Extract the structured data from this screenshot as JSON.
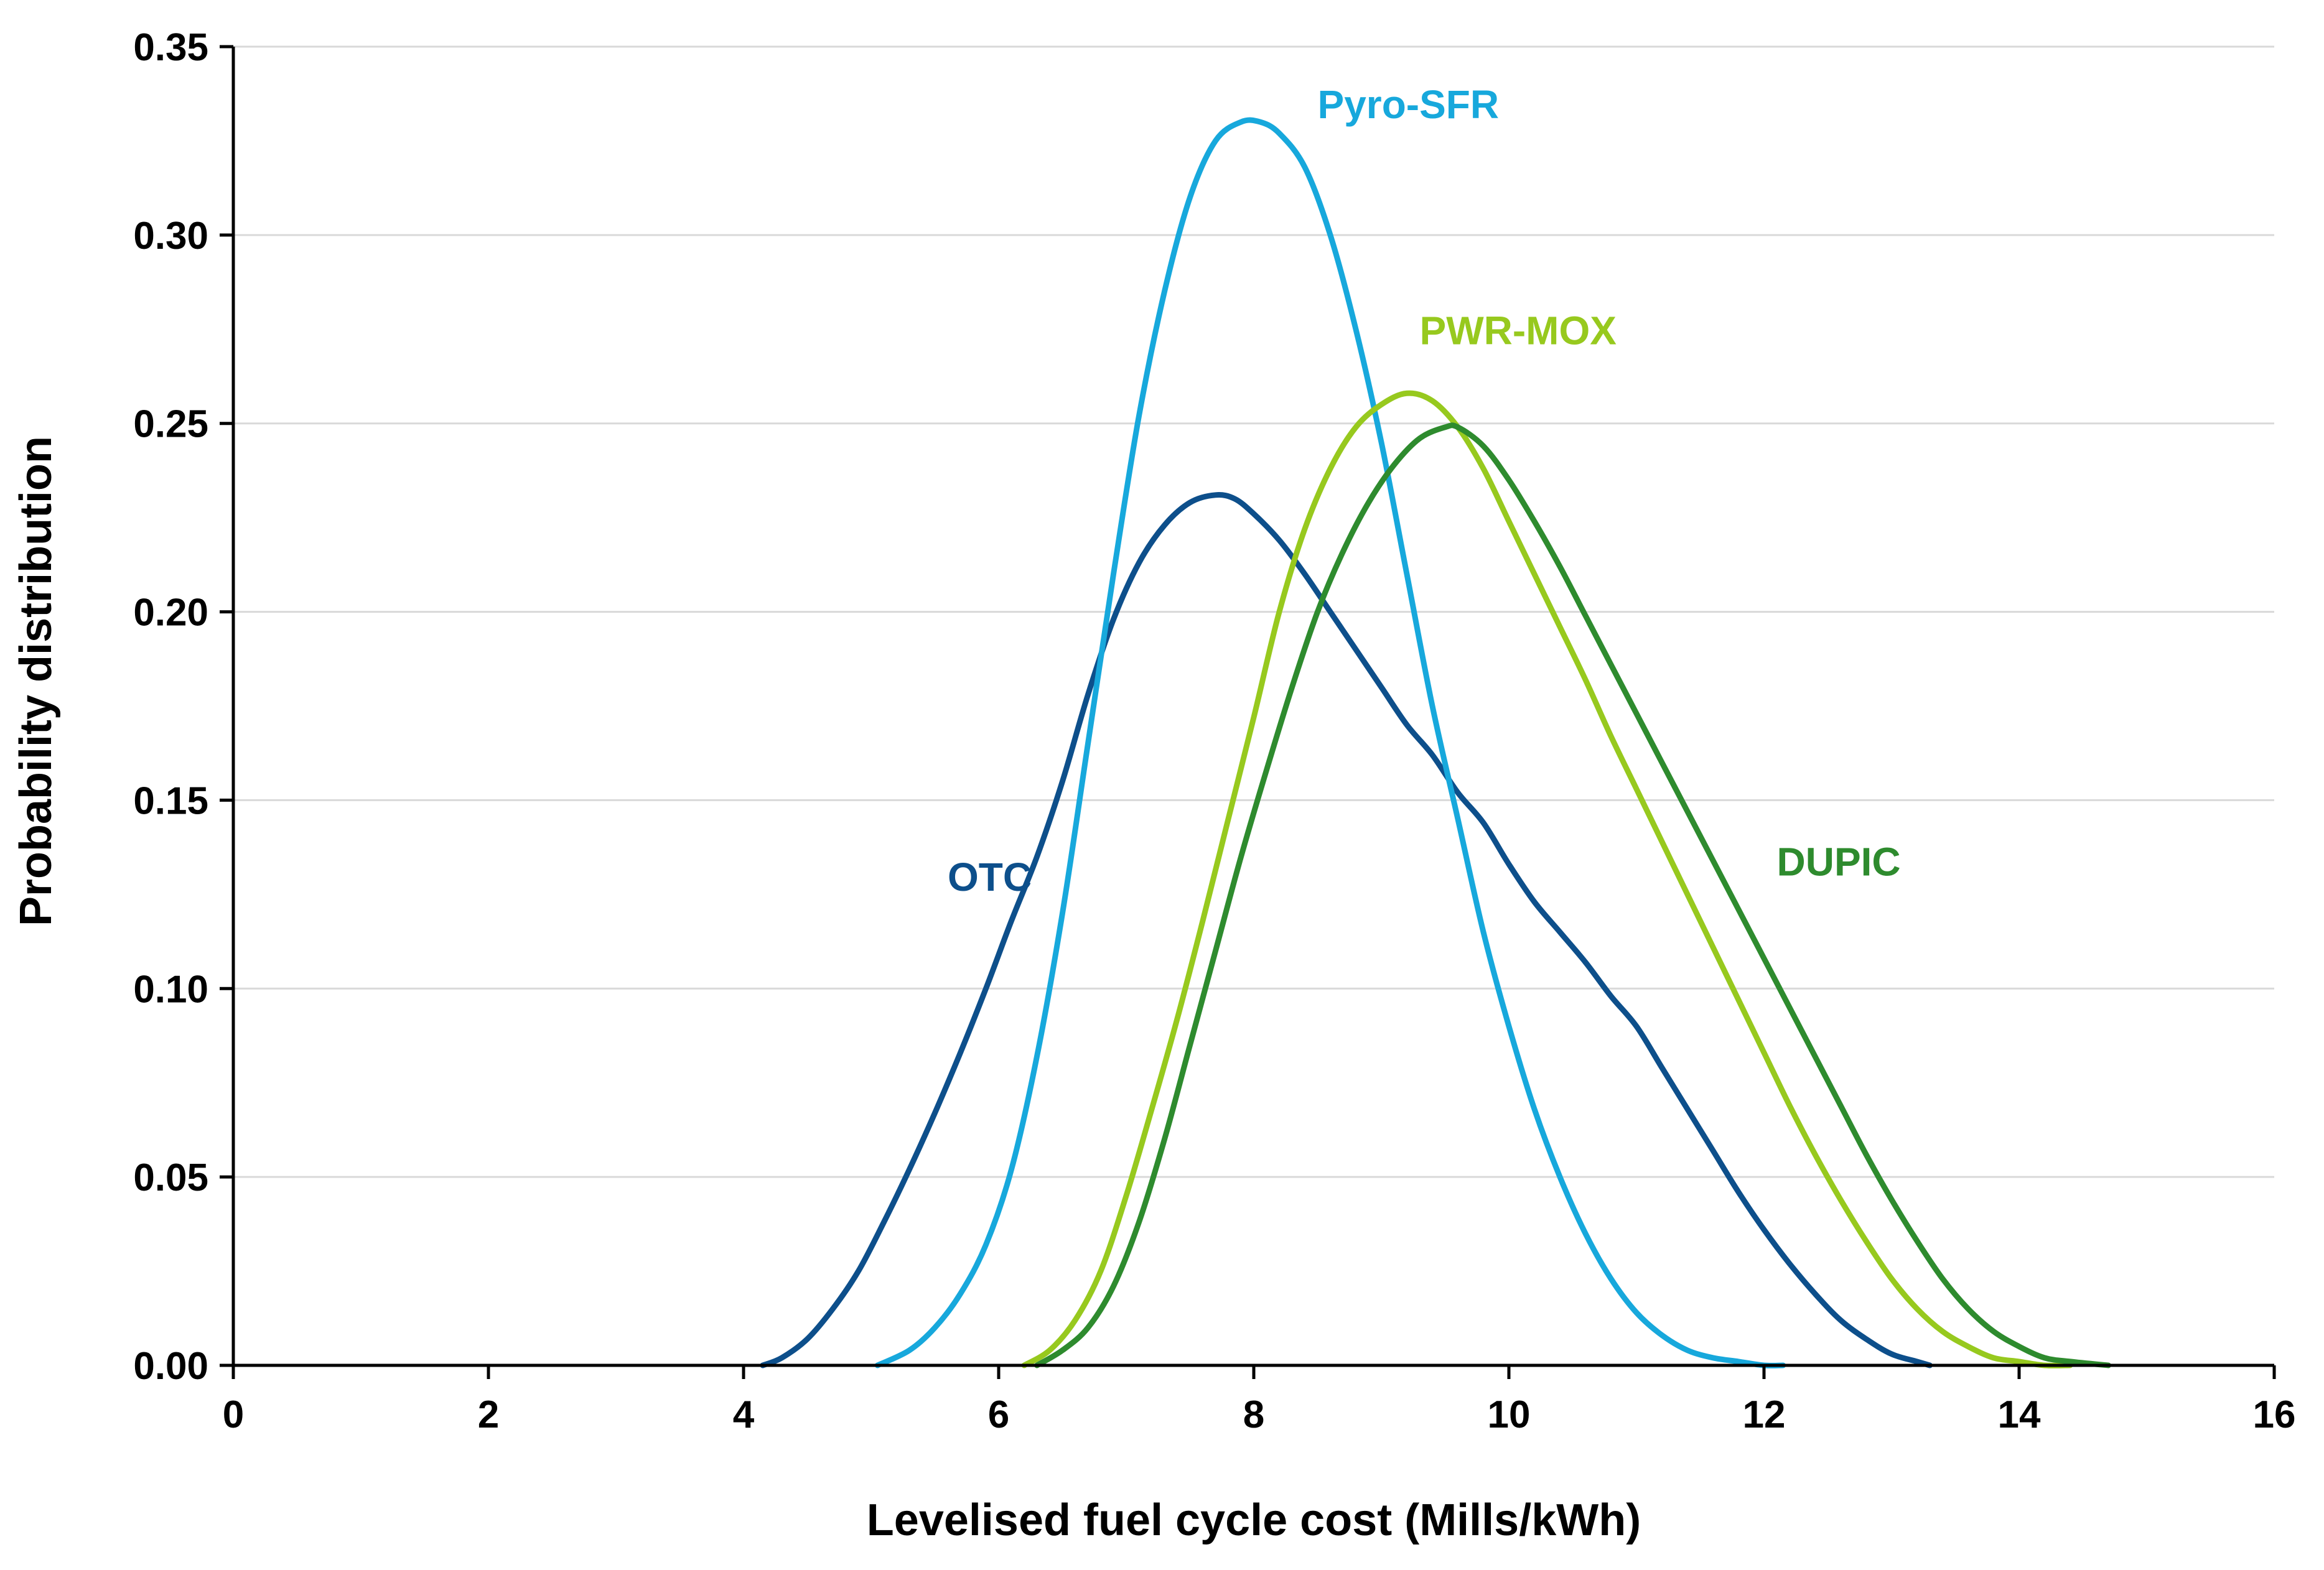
{
  "chart_data": {
    "type": "line",
    "title": "",
    "xlabel": "Levelised fuel cycle cost (Mills/kWh)",
    "ylabel": "Probability distribution",
    "xlim": [
      0,
      16
    ],
    "ylim": [
      0,
      0.35
    ],
    "x_ticks": [
      0,
      2,
      4,
      6,
      8,
      10,
      12,
      14,
      16
    ],
    "x_tick_labels": [
      "0",
      "2",
      "4",
      "6",
      "8",
      "10",
      "12",
      "14",
      "16"
    ],
    "y_ticks": [
      0,
      0.05,
      0.1,
      0.15,
      0.2,
      0.25,
      0.3,
      0.35
    ],
    "y_tick_labels": [
      "0.00",
      "0.05",
      "0.10",
      "0.15",
      "0.20",
      "0.25",
      "0.30",
      "0.35"
    ],
    "grid": true,
    "legend": "inline labels",
    "series": [
      {
        "name": "OTC",
        "color": "#0d4f8b",
        "label_at": [
          5.6,
          0.126
        ],
        "x": [
          4.15,
          4.3,
          4.5,
          4.7,
          4.9,
          5.1,
          5.3,
          5.5,
          5.7,
          5.9,
          6.1,
          6.3,
          6.5,
          6.7,
          6.9,
          7.1,
          7.3,
          7.5,
          7.7,
          7.85,
          8.0,
          8.2,
          8.4,
          8.6,
          8.8,
          9.0,
          9.2,
          9.4,
          9.6,
          9.8,
          10.0,
          10.2,
          10.4,
          10.6,
          10.8,
          11.0,
          11.2,
          11.4,
          11.6,
          11.8,
          12.0,
          12.2,
          12.4,
          12.6,
          12.8,
          13.0,
          13.2,
          13.3
        ],
        "y": [
          0.0,
          0.002,
          0.007,
          0.015,
          0.025,
          0.038,
          0.052,
          0.067,
          0.083,
          0.1,
          0.118,
          0.135,
          0.155,
          0.178,
          0.198,
          0.213,
          0.223,
          0.229,
          0.231,
          0.23,
          0.226,
          0.219,
          0.21,
          0.2,
          0.19,
          0.18,
          0.17,
          0.162,
          0.152,
          0.144,
          0.133,
          0.123,
          0.115,
          0.107,
          0.098,
          0.09,
          0.079,
          0.068,
          0.057,
          0.046,
          0.036,
          0.027,
          0.019,
          0.012,
          0.007,
          0.003,
          0.001,
          0.0
        ]
      },
      {
        "name": "Pyro-SFR",
        "color": "#17a8dc",
        "label_at": [
          8.5,
          0.331
        ],
        "x": [
          5.05,
          5.3,
          5.5,
          5.7,
          5.9,
          6.1,
          6.3,
          6.5,
          6.7,
          6.9,
          7.1,
          7.3,
          7.5,
          7.7,
          7.9,
          8.05,
          8.2,
          8.4,
          8.6,
          8.8,
          9.0,
          9.2,
          9.4,
          9.6,
          9.8,
          10.0,
          10.2,
          10.4,
          10.6,
          10.8,
          11.0,
          11.2,
          11.4,
          11.6,
          11.8,
          12.0,
          12.15
        ],
        "y": [
          0.0,
          0.004,
          0.01,
          0.019,
          0.032,
          0.052,
          0.082,
          0.12,
          0.165,
          0.21,
          0.252,
          0.285,
          0.31,
          0.325,
          0.33,
          0.33,
          0.327,
          0.318,
          0.3,
          0.275,
          0.245,
          0.21,
          0.175,
          0.145,
          0.115,
          0.09,
          0.068,
          0.05,
          0.035,
          0.023,
          0.014,
          0.008,
          0.004,
          0.002,
          0.001,
          0.0,
          0.0
        ]
      },
      {
        "name": "PWR-MOX",
        "color": "#97c91e",
        "label_at": [
          9.3,
          0.271
        ],
        "x": [
          6.2,
          6.4,
          6.6,
          6.8,
          7.0,
          7.2,
          7.4,
          7.6,
          7.8,
          8.0,
          8.2,
          8.4,
          8.6,
          8.8,
          9.0,
          9.2,
          9.4,
          9.6,
          9.8,
          10.0,
          10.2,
          10.4,
          10.6,
          10.8,
          11.0,
          11.2,
          11.4,
          11.6,
          11.8,
          12.0,
          12.2,
          12.4,
          12.6,
          12.8,
          13.0,
          13.2,
          13.4,
          13.6,
          13.8,
          14.0,
          14.2,
          14.4
        ],
        "y": [
          0.0,
          0.004,
          0.012,
          0.025,
          0.045,
          0.068,
          0.092,
          0.118,
          0.145,
          0.172,
          0.2,
          0.222,
          0.238,
          0.249,
          0.255,
          0.258,
          0.256,
          0.249,
          0.238,
          0.224,
          0.21,
          0.196,
          0.182,
          0.167,
          0.153,
          0.139,
          0.125,
          0.111,
          0.097,
          0.083,
          0.069,
          0.056,
          0.044,
          0.033,
          0.023,
          0.015,
          0.009,
          0.005,
          0.002,
          0.001,
          0.0,
          0.0
        ]
      },
      {
        "name": "DUPIC",
        "color": "#2e8b2e",
        "label_at": [
          12.1,
          0.13
        ],
        "x": [
          6.3,
          6.5,
          6.7,
          6.9,
          7.1,
          7.3,
          7.5,
          7.7,
          7.9,
          8.1,
          8.3,
          8.5,
          8.7,
          8.9,
          9.1,
          9.3,
          9.5,
          9.6,
          9.8,
          10.0,
          10.2,
          10.4,
          10.6,
          10.8,
          11.0,
          11.2,
          11.4,
          11.6,
          11.8,
          12.0,
          12.2,
          12.4,
          12.6,
          12.8,
          13.0,
          13.2,
          13.4,
          13.6,
          13.8,
          14.0,
          14.2,
          14.4,
          14.7
        ],
        "y": [
          0.0,
          0.004,
          0.01,
          0.021,
          0.038,
          0.06,
          0.085,
          0.11,
          0.135,
          0.158,
          0.18,
          0.2,
          0.216,
          0.229,
          0.239,
          0.246,
          0.249,
          0.249,
          0.244,
          0.235,
          0.224,
          0.212,
          0.199,
          0.186,
          0.173,
          0.16,
          0.147,
          0.134,
          0.121,
          0.108,
          0.095,
          0.082,
          0.069,
          0.056,
          0.044,
          0.033,
          0.023,
          0.015,
          0.009,
          0.005,
          0.002,
          0.001,
          0.0
        ]
      }
    ]
  }
}
